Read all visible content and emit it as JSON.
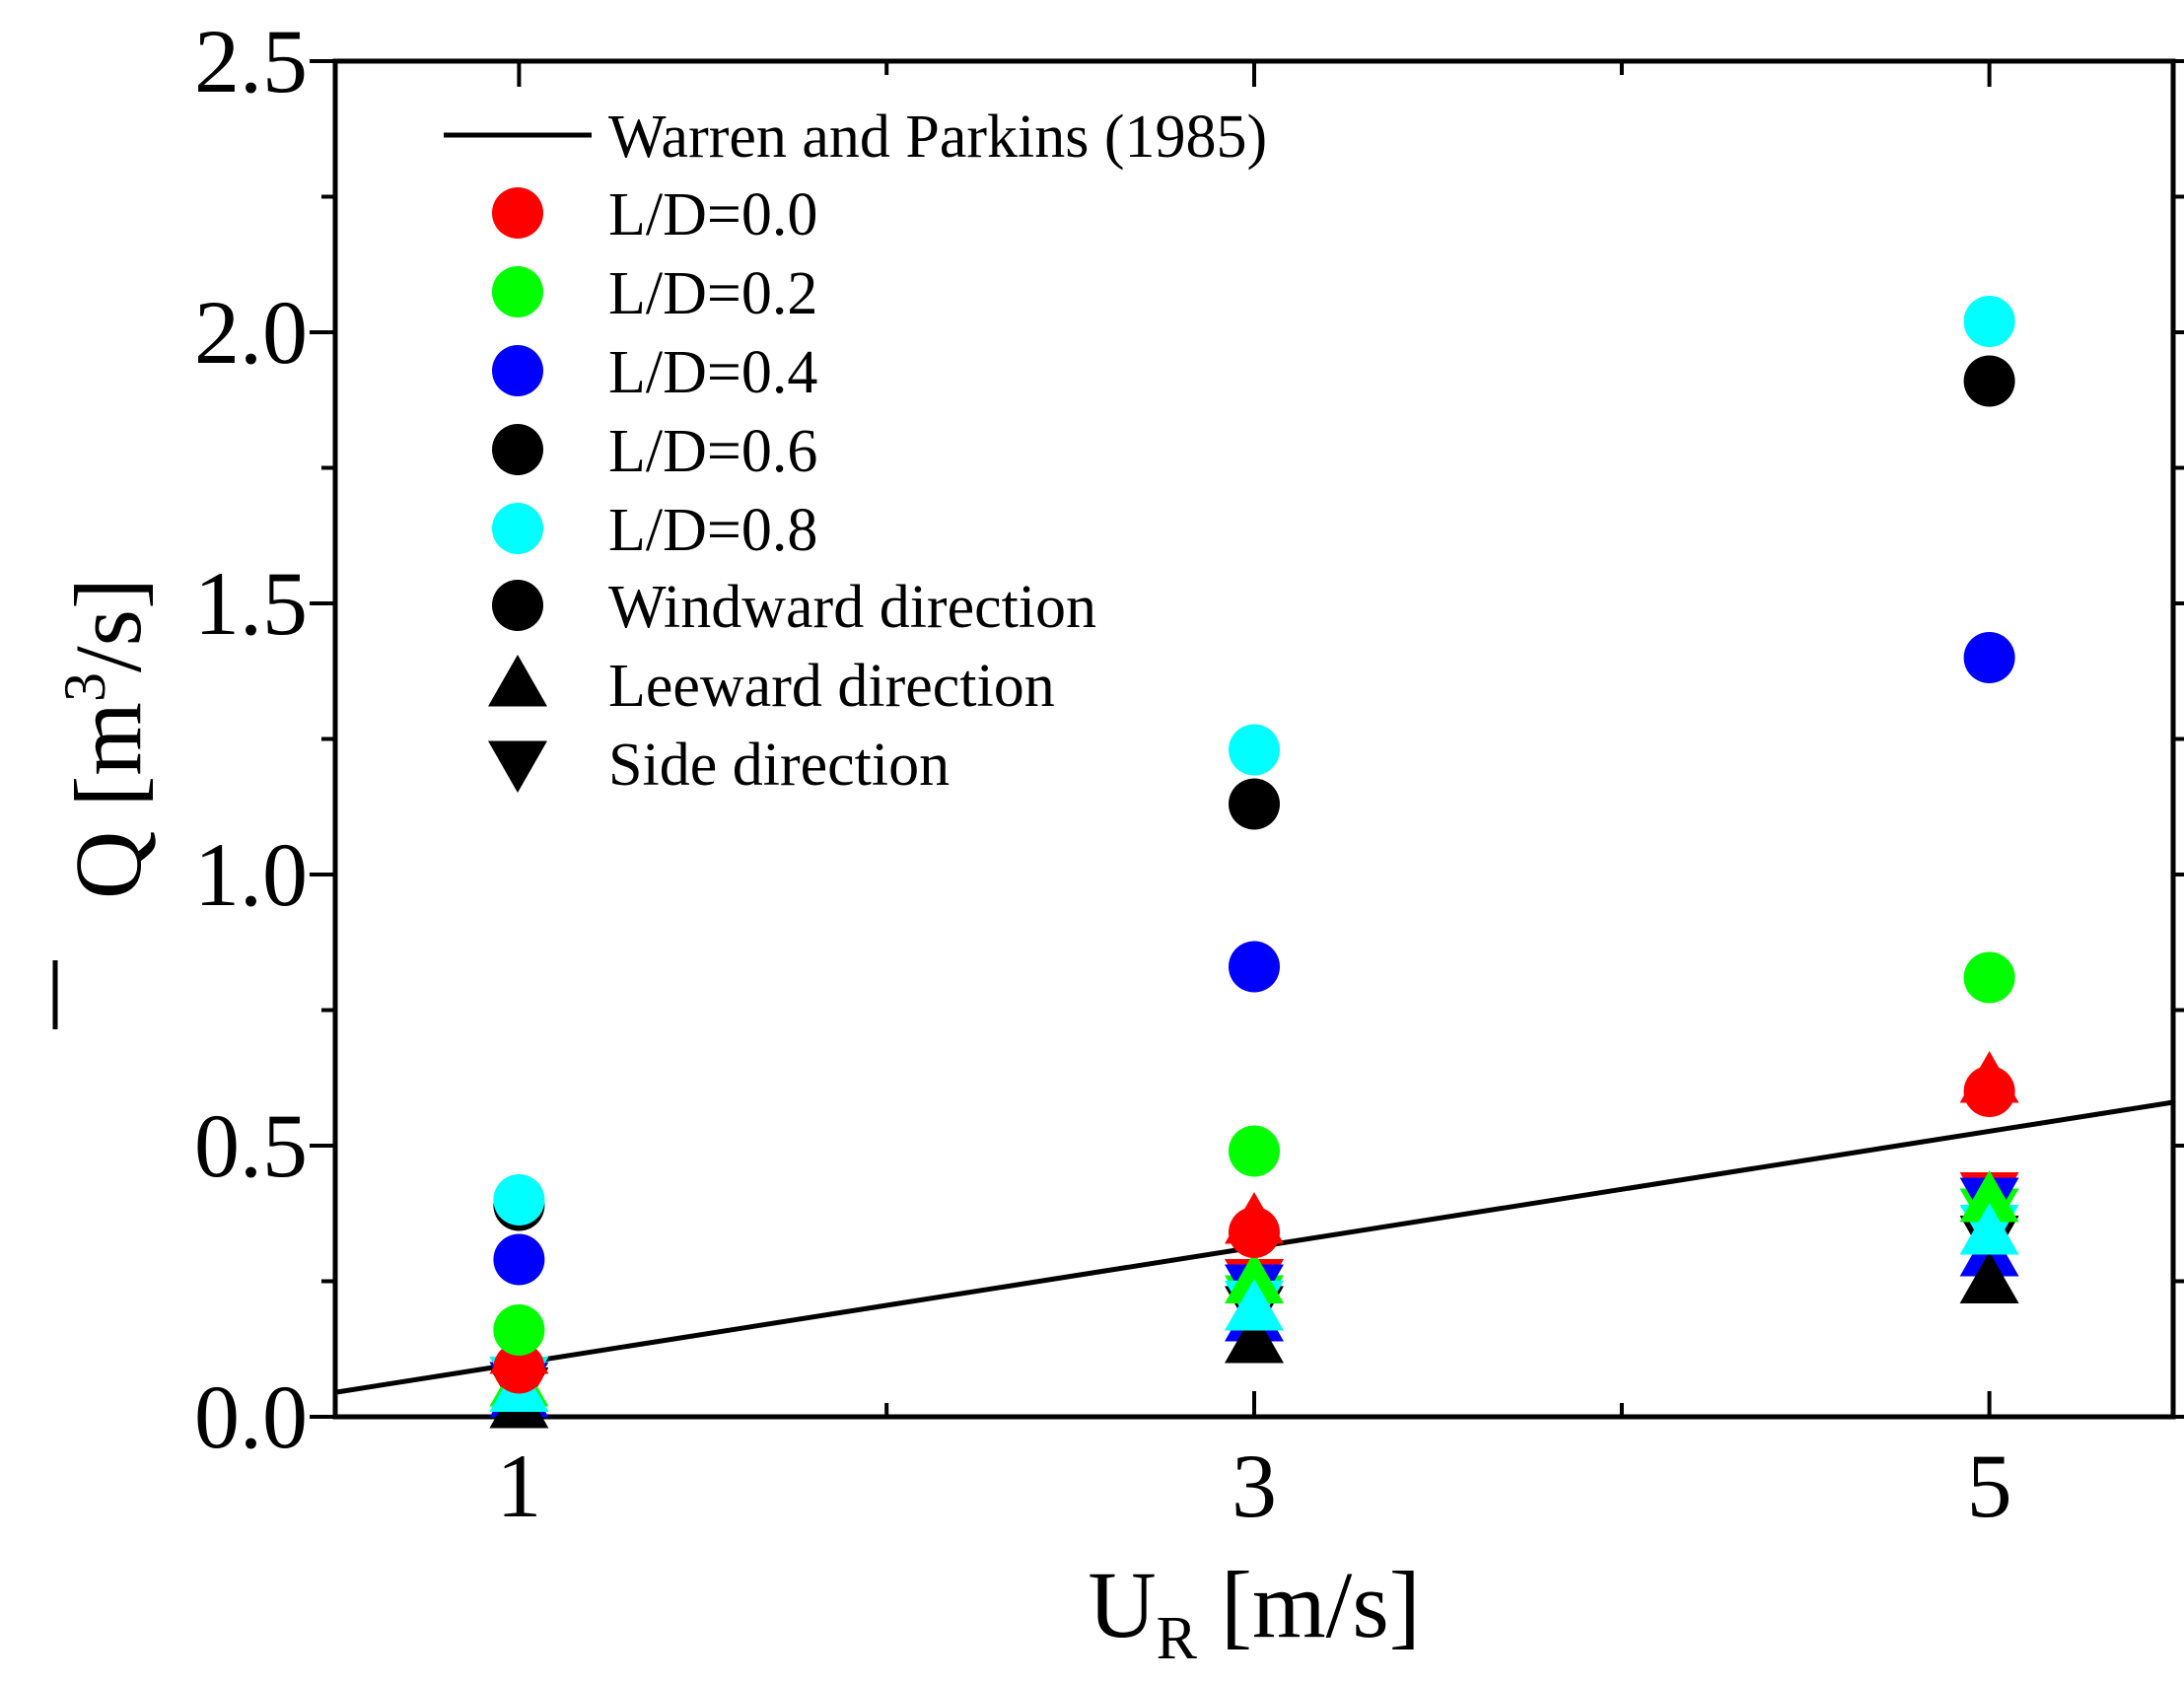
{
  "chart_data": {
    "type": "scatter",
    "title": "",
    "xlabel": {
      "main": "U",
      "sub": "R",
      "unit": " [m/s]"
    },
    "ylabel": {
      "symbol": "Q",
      "unit_open": " [m",
      "exponent": "3",
      "unit_close": "/s]"
    },
    "xlim": [
      0.5,
      5.5
    ],
    "ylim": [
      0.0,
      2.5
    ],
    "xticks": [
      1,
      3,
      5
    ],
    "xtick_labels": [
      "1",
      "3",
      "5"
    ],
    "xminor": [
      2,
      4
    ],
    "yticks": [
      0.0,
      0.5,
      1.0,
      1.5,
      2.0,
      2.5
    ],
    "ytick_labels": [
      "0.0",
      "0.5",
      "1.0",
      "1.5",
      "2.0",
      "2.5"
    ],
    "yminor": [
      0.25,
      0.75,
      1.25,
      1.75,
      2.25
    ],
    "grid": false,
    "legend_position": "top-left",
    "reference_line": {
      "name": "Warren and Parkins (1985)",
      "x": [
        0.5,
        5.5
      ],
      "y": [
        0.045,
        0.58
      ],
      "color": "#000000"
    },
    "x": [
      1,
      3,
      5
    ],
    "series": [
      {
        "name": "L/D=0.0",
        "color": "#ff0000",
        "windward": [
          0.09,
          0.34,
          0.6
        ],
        "leeward": [
          0.12,
          0.36,
          0.62
        ],
        "side": [
          0.07,
          0.25,
          0.41
        ]
      },
      {
        "name": "L/D=0.2",
        "color": "#00ff00",
        "windward": [
          0.16,
          0.49,
          0.81
        ],
        "leeward": [
          0.06,
          0.25,
          0.4
        ],
        "side": [
          0.06,
          0.22,
          0.38
        ]
      },
      {
        "name": "L/D=0.4",
        "color": "#0000ff",
        "windward": [
          0.29,
          0.83,
          1.4
        ],
        "leeward": [
          0.04,
          0.18,
          0.3
        ],
        "side": [
          0.06,
          0.24,
          0.4
        ]
      },
      {
        "name": "L/D=0.6",
        "color": "#000000",
        "windward": [
          0.39,
          1.13,
          1.91
        ],
        "leeward": [
          0.02,
          0.14,
          0.25
        ],
        "side": [
          0.05,
          0.2,
          0.33
        ]
      },
      {
        "name": "L/D=0.8",
        "color": "#00ffff",
        "windward": [
          0.4,
          1.23,
          2.02
        ],
        "leeward": [
          0.05,
          0.2,
          0.34
        ],
        "side": [
          0.07,
          0.21,
          0.35
        ]
      }
    ],
    "marker_legend": [
      {
        "label": "Windward direction",
        "shape": "circle"
      },
      {
        "label": "Leeward direction",
        "shape": "triangle-up"
      },
      {
        "label": "Side direction",
        "shape": "triangle-down"
      }
    ]
  }
}
